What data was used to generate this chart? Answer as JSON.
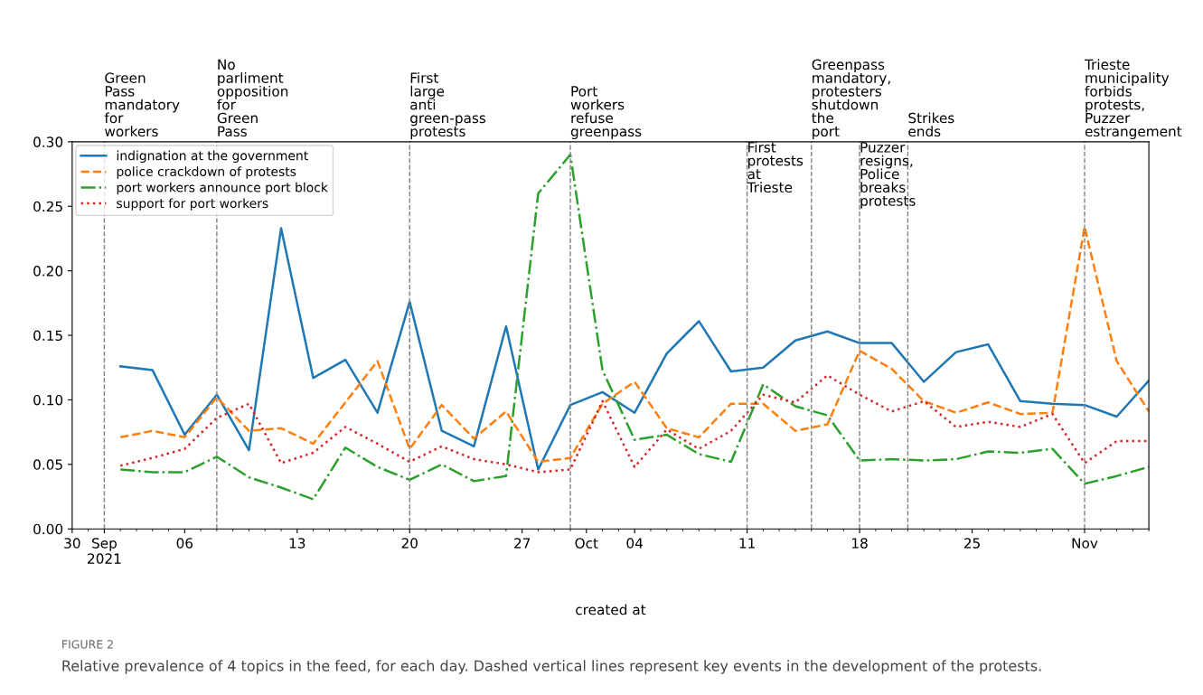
{
  "chart_data": {
    "type": "line",
    "xlabel": "created at",
    "x": [
      "2021-09-02",
      "2021-09-04",
      "2021-09-06",
      "2021-09-08",
      "2021-09-10",
      "2021-09-12",
      "2021-09-14",
      "2021-09-16",
      "2021-09-18",
      "2021-09-20",
      "2021-09-22",
      "2021-09-24",
      "2021-09-26",
      "2021-09-28",
      "2021-09-30",
      "2021-10-02",
      "2021-10-04",
      "2021-10-06",
      "2021-10-08",
      "2021-10-10",
      "2021-10-12",
      "2021-10-14",
      "2021-10-16",
      "2021-10-18",
      "2021-10-20",
      "2021-10-22",
      "2021-10-24",
      "2021-10-26",
      "2021-10-28",
      "2021-10-30",
      "2021-11-01",
      "2021-11-03",
      "2021-11-05"
    ],
    "series": [
      {
        "name": "indignation at the government",
        "color": "#1f77b4",
        "line_style": "solid",
        "values": [
          0.126,
          0.123,
          0.073,
          0.104,
          0.061,
          0.233,
          0.117,
          0.131,
          0.09,
          0.176,
          0.076,
          0.064,
          0.157,
          0.046,
          0.096,
          0.106,
          0.09,
          0.136,
          0.161,
          0.122,
          0.125,
          0.146,
          0.153,
          0.144,
          0.144,
          0.114,
          0.137,
          0.143,
          0.099,
          0.097,
          0.096,
          0.087,
          0.115
        ]
      },
      {
        "name": "police crackdown of protests",
        "color": "#ff7f0e",
        "line_style": "dashed",
        "values": [
          0.071,
          0.076,
          0.071,
          0.102,
          0.076,
          0.078,
          0.066,
          0.098,
          0.13,
          0.062,
          0.096,
          0.07,
          0.091,
          0.052,
          0.055,
          0.097,
          0.114,
          0.078,
          0.071,
          0.097,
          0.097,
          0.076,
          0.081,
          0.138,
          0.124,
          0.099,
          0.09,
          0.098,
          0.089,
          0.09,
          0.234,
          0.13,
          0.091
        ]
      },
      {
        "name": "port workers announce port block",
        "color": "#2ca02c",
        "line_style": "dashdot",
        "values": [
          0.046,
          0.044,
          0.044,
          0.056,
          0.04,
          0.032,
          0.023,
          0.063,
          0.048,
          0.038,
          0.05,
          0.037,
          0.041,
          0.26,
          0.29,
          0.123,
          0.069,
          0.073,
          0.058,
          0.052,
          0.112,
          0.095,
          0.088,
          0.053,
          0.054,
          0.053,
          0.054,
          0.06,
          0.059,
          0.062,
          0.035,
          0.041,
          0.048
        ]
      },
      {
        "name": "support for port workers",
        "color": "#d62728",
        "line_style": "dotted",
        "values": [
          0.049,
          0.055,
          0.062,
          0.086,
          0.097,
          0.051,
          0.059,
          0.079,
          0.066,
          0.052,
          0.064,
          0.054,
          0.05,
          0.044,
          0.046,
          0.099,
          0.048,
          0.077,
          0.062,
          0.076,
          0.104,
          0.098,
          0.119,
          0.104,
          0.091,
          0.099,
          0.079,
          0.083,
          0.079,
          0.089,
          0.051,
          0.068,
          0.068
        ]
      }
    ],
    "xlim": [
      "2021-08-30",
      "2021-11-05"
    ],
    "xticks": [
      {
        "value": "2021-08-30",
        "label": "30"
      },
      {
        "value": "2021-09-01",
        "label": "Sep\n2021"
      },
      {
        "value": "2021-09-06",
        "label": "06"
      },
      {
        "value": "2021-09-13",
        "label": "13"
      },
      {
        "value": "2021-09-20",
        "label": "20"
      },
      {
        "value": "2021-09-27",
        "label": "27"
      },
      {
        "value": "2021-10-01",
        "label": "Oct"
      },
      {
        "value": "2021-10-04",
        "label": "04"
      },
      {
        "value": "2021-10-11",
        "label": "11"
      },
      {
        "value": "2021-10-18",
        "label": "18"
      },
      {
        "value": "2021-10-25",
        "label": "25"
      },
      {
        "value": "2021-11-01",
        "label": "Nov"
      }
    ],
    "ylim": [
      0,
      0.3
    ],
    "yticks": [
      {
        "value": 0,
        "label": "0.00"
      },
      {
        "value": 0.05,
        "label": "0.05"
      },
      {
        "value": 0.1,
        "label": "0.10"
      },
      {
        "value": 0.15,
        "label": "0.15"
      },
      {
        "value": 0.2,
        "label": "0.20"
      },
      {
        "value": 0.25,
        "label": "0.25"
      },
      {
        "value": 0.3,
        "label": "0.30"
      }
    ],
    "ref_lines": [
      {
        "axis": "x",
        "value": "2021-09-01",
        "label": "Green Pass mandatory for workers",
        "color": "#808080",
        "line_style": "dashed"
      },
      {
        "axis": "x",
        "value": "2021-09-08",
        "label": "No parliment opposition for Green Pass",
        "color": "#808080",
        "line_style": "dashed"
      },
      {
        "axis": "x",
        "value": "2021-09-20",
        "label": "First large anti green-pass protests",
        "color": "#808080",
        "line_style": "dashed"
      },
      {
        "axis": "x",
        "value": "2021-09-30",
        "label": "Port workers refuse greenpass",
        "color": "#808080",
        "line_style": "dashed"
      },
      {
        "axis": "x",
        "value": "2021-10-11",
        "label": "First protests at Trieste",
        "color": "#808080",
        "line_style": "dashed"
      },
      {
        "axis": "x",
        "value": "2021-10-15",
        "label": "Greenpass mandatory, protesters shutdown the port",
        "color": "#808080",
        "line_style": "dashed"
      },
      {
        "axis": "x",
        "value": "2021-10-18",
        "label": "Puzzer resigns, Police breaks protests",
        "color": "#808080",
        "line_style": "dashed"
      },
      {
        "axis": "x",
        "value": "2021-10-21",
        "label": "Strikes ends",
        "color": "#808080",
        "line_style": "dashed"
      },
      {
        "axis": "x",
        "value": "2021-11-01",
        "label": "Trieste municipality forbids protests, Puzzer estrangement",
        "color": "#808080",
        "line_style": "dashed"
      }
    ],
    "annotations": [
      "FIGURE 2",
      "Relative prevalence of 4 topics in the feed, for each day. Dashed vertical lines represent key events in the development of the protests."
    ],
    "legend": "top left",
    "grid": false,
    "marker": "none"
  }
}
